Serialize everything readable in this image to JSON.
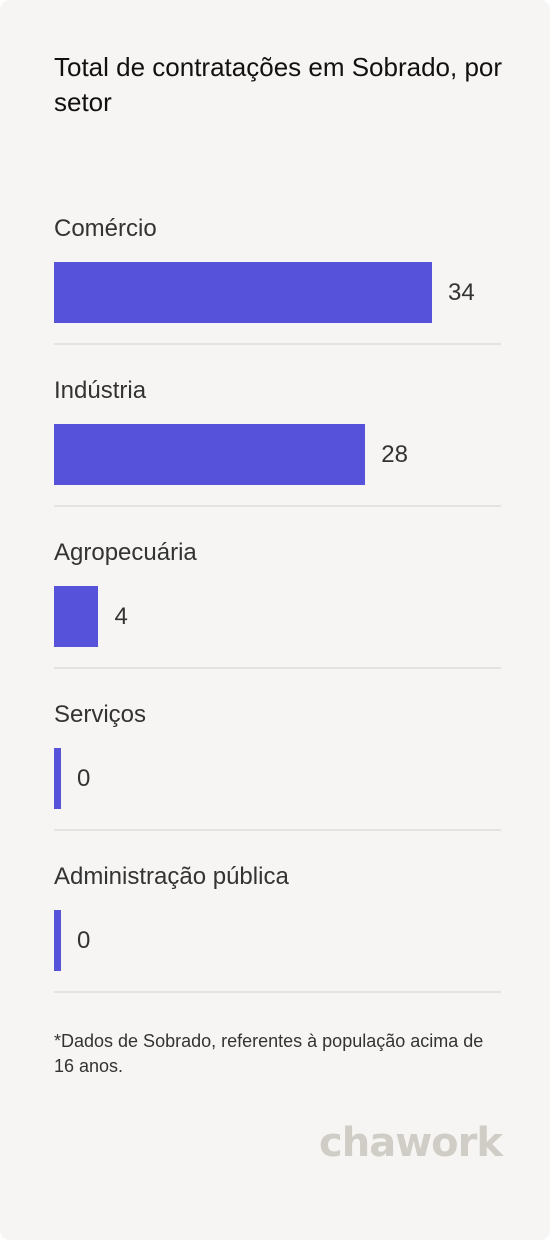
{
  "title": "Total de contratações em Sobrado, por setor",
  "chart_data": {
    "type": "bar",
    "orientation": "horizontal",
    "title": "Total de contratações em Sobrado, por setor",
    "categories": [
      "Comércio",
      "Indústria",
      "Agropecuária",
      "Serviços",
      "Administração pública"
    ],
    "values": [
      34,
      28,
      4,
      0,
      0
    ],
    "xlim": [
      0,
      40
    ],
    "data_labels": true,
    "grid": false,
    "legend": "none",
    "bar_color": "#5652d9"
  },
  "footnote": "*Dados de Sobrado, referentes à população acima de 16 anos.",
  "brand": "chawork",
  "colors": {
    "background": "#f6f5f3",
    "bar": "#5652d9",
    "divider": "#e4e3e0",
    "text": "#333333",
    "brand": "#cfcdc6"
  }
}
